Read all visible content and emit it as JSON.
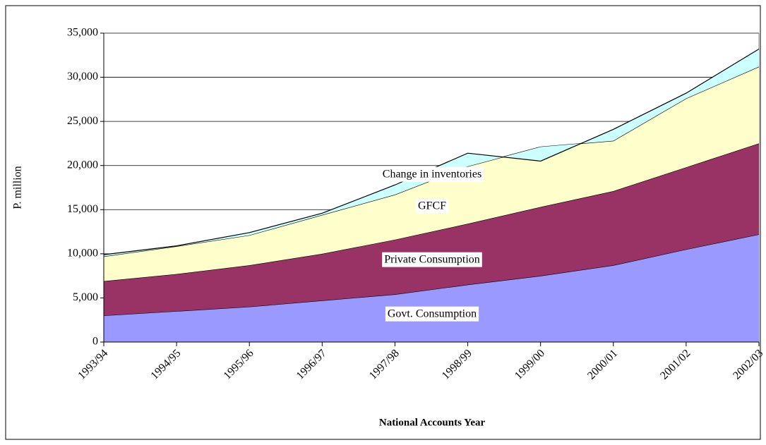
{
  "chart_data": {
    "type": "stacked-area",
    "x_label": "National Accounts Year",
    "y_label": "P. million",
    "categories": [
      "1993/94",
      "1994/95",
      "1995/96",
      "1996/97",
      "1997/98",
      "1998/99",
      "1999/00",
      "2000/01",
      "2001/02",
      "2002/03"
    ],
    "series": [
      {
        "name": "Govt. Consumption",
        "color": "#9999ff",
        "values": [
          3000,
          3500,
          4000,
          4700,
          5400,
          6500,
          7500,
          8700,
          10500,
          12200
        ]
      },
      {
        "name": "Private Consumption",
        "color": "#993366",
        "values": [
          3900,
          4200,
          4700,
          5300,
          6200,
          6900,
          7800,
          8400,
          9300,
          10300
        ]
      },
      {
        "name": "GFCF",
        "color": "#ffffcc",
        "values": [
          2800,
          3150,
          3400,
          4400,
          5100,
          6500,
          6800,
          5700,
          7800,
          8700
        ]
      },
      {
        "name": "Change in inventories",
        "color": "#ccffff",
        "values": [
          200,
          50,
          300,
          200,
          1100,
          1500,
          -1600,
          1300,
          600,
          2000
        ]
      }
    ],
    "ylim": [
      0,
      35000
    ],
    "yticks": [
      0,
      {
        "value": 5000,
        "label": "5,000"
      },
      {
        "value": 10000,
        "label": "10,000"
      },
      {
        "value": 15000,
        "label": "15,000"
      },
      {
        "value": 20000,
        "label": "20,000"
      },
      {
        "value": 25000,
        "label": "25,000"
      },
      {
        "value": 30000,
        "label": "30,000"
      },
      {
        "value": 35000,
        "label": "35,000"
      }
    ],
    "grid": true
  }
}
